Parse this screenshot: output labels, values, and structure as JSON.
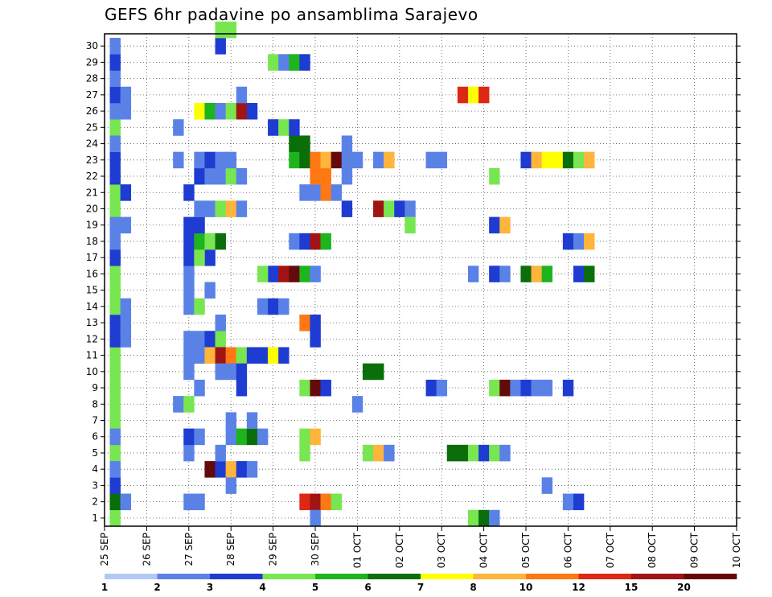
{
  "chart_data": {
    "type": "heatmap",
    "title": "GEFS 6hr padavine po ansamblima Sarajevo",
    "y_categories": [
      "1",
      "2",
      "3",
      "4",
      "5",
      "6",
      "7",
      "8",
      "9",
      "10",
      "11",
      "12",
      "13",
      "14",
      "15",
      "16",
      "17",
      "18",
      "19",
      "20",
      "21",
      "22",
      "23",
      "24",
      "25",
      "26",
      "27",
      "28",
      "29",
      "30"
    ],
    "x_ticks": [
      "25 SEP",
      "26 SEP",
      "27 SEP",
      "28 SEP",
      "29 SEP",
      "30 SEP",
      "01 OCT",
      "02 OCT",
      "03 OCT",
      "04 OCT",
      "05 OCT",
      "06 OCT",
      "07 OCT",
      "08 OCT",
      "09 OCT",
      "10 OCT"
    ],
    "time_step_hours": 6,
    "grid": "dotted",
    "colorbar": {
      "position": "bottom",
      "ticks": [
        "1",
        "2",
        "3",
        "4",
        "5",
        "6",
        "7",
        "8",
        "10",
        "12",
        "15",
        "20"
      ],
      "colors": [
        "#b4c8f5",
        "#5a82e6",
        "#1e3cd2",
        "#78e650",
        "#1eb41e",
        "#0a6e0a",
        "#ffff00",
        "#ffb43c",
        "#ff7814",
        "#dc2814",
        "#a01414",
        "#640a0a"
      ]
    },
    "cells": [
      [
        1,
        1,
        3
      ],
      [
        1,
        2,
        3
      ],
      [
        1,
        3,
        3
      ],
      [
        1,
        4,
        3
      ],
      [
        1,
        5,
        3
      ],
      [
        1,
        6,
        3
      ],
      [
        1,
        7,
        3
      ],
      [
        1,
        8,
        3
      ],
      [
        1,
        9,
        3
      ],
      [
        1,
        10,
        3
      ],
      [
        1,
        11,
        3
      ],
      [
        1,
        12,
        3
      ],
      [
        1,
        13,
        3
      ],
      [
        1,
        14,
        3
      ],
      [
        1,
        15,
        3
      ],
      [
        1,
        16,
        3
      ],
      [
        1,
        17,
        3
      ],
      [
        1,
        18,
        3
      ],
      [
        1,
        19,
        3
      ],
      [
        1,
        20,
        3
      ],
      [
        1,
        21,
        3
      ],
      [
        1,
        22,
        3
      ],
      [
        1,
        23,
        3
      ],
      [
        1,
        24,
        3
      ],
      [
        1,
        25,
        3
      ],
      [
        1,
        26,
        3
      ],
      [
        1,
        27,
        3
      ],
      [
        1,
        28,
        3
      ],
      [
        1,
        29,
        3
      ],
      [
        1,
        30,
        3
      ],
      [
        1,
        2,
        5
      ],
      [
        2,
        2,
        1
      ],
      [
        1,
        3,
        2
      ],
      [
        1,
        4,
        1
      ],
      [
        1,
        6,
        1
      ],
      [
        1,
        12,
        2
      ],
      [
        2,
        12,
        1
      ],
      [
        1,
        13,
        2
      ],
      [
        2,
        13,
        1
      ],
      [
        1,
        14,
        3
      ],
      [
        2,
        14,
        1
      ],
      [
        1,
        17,
        2
      ],
      [
        1,
        18,
        1
      ],
      [
        1,
        19,
        1
      ],
      [
        2,
        19,
        1
      ],
      [
        1,
        21,
        3
      ],
      [
        2,
        21,
        2
      ],
      [
        1,
        22,
        2
      ],
      [
        1,
        23,
        2
      ],
      [
        1,
        24,
        1
      ],
      [
        1,
        26,
        1
      ],
      [
        2,
        26,
        1
      ],
      [
        1,
        27,
        2
      ],
      [
        2,
        27,
        1
      ],
      [
        1,
        28,
        1
      ],
      [
        1,
        29,
        2
      ],
      [
        1,
        30,
        1
      ],
      [
        9,
        2,
        1
      ],
      [
        8,
        2,
        1
      ],
      [
        8,
        5,
        1
      ],
      [
        8,
        6,
        2
      ],
      [
        9,
        6,
        1
      ],
      [
        7,
        8,
        1
      ],
      [
        8,
        8,
        3
      ],
      [
        9,
        9,
        1
      ],
      [
        8,
        10,
        1
      ],
      [
        8,
        11,
        1
      ],
      [
        9,
        11,
        1
      ],
      [
        10,
        11,
        1
      ],
      [
        8,
        12,
        1
      ],
      [
        9,
        12,
        1
      ],
      [
        10,
        12,
        2
      ],
      [
        11,
        12,
        3
      ],
      [
        11,
        13,
        1
      ],
      [
        8,
        14,
        1
      ],
      [
        9,
        14,
        3
      ],
      [
        8,
        15,
        1
      ],
      [
        10,
        15,
        1
      ],
      [
        10,
        17,
        2
      ],
      [
        8,
        16,
        1
      ],
      [
        8,
        17,
        2
      ],
      [
        9,
        17,
        3
      ],
      [
        8,
        18,
        2
      ],
      [
        9,
        18,
        4
      ],
      [
        10,
        18,
        3
      ],
      [
        11,
        18,
        5
      ],
      [
        8,
        19,
        2
      ],
      [
        9,
        19,
        2
      ],
      [
        8,
        21,
        2
      ],
      [
        9,
        20,
        1
      ],
      [
        10,
        20,
        1
      ],
      [
        11,
        20,
        3
      ],
      [
        12,
        20,
        7
      ],
      [
        13,
        20,
        1
      ],
      [
        9,
        22,
        2
      ],
      [
        10,
        22,
        1
      ],
      [
        11,
        22,
        1
      ],
      [
        12,
        22,
        3
      ],
      [
        13,
        22,
        1
      ],
      [
        7,
        23,
        1
      ],
      [
        9,
        23,
        1
      ],
      [
        10,
        23,
        2
      ],
      [
        11,
        23,
        1
      ],
      [
        12,
        23,
        1
      ],
      [
        7,
        25,
        1
      ],
      [
        9,
        26,
        6
      ],
      [
        10,
        26,
        4
      ],
      [
        11,
        26,
        1
      ],
      [
        12,
        26,
        3
      ],
      [
        13,
        26,
        10
      ],
      [
        14,
        26,
        2
      ],
      [
        13,
        27,
        1
      ],
      [
        11,
        30,
        2
      ],
      [
        11,
        31,
        3
      ],
      [
        12,
        31,
        3
      ],
      [
        10,
        11,
        7
      ],
      [
        11,
        11,
        10
      ],
      [
        12,
        11,
        8
      ],
      [
        13,
        11,
        3
      ],
      [
        14,
        11,
        2
      ],
      [
        15,
        11,
        2
      ],
      [
        16,
        11,
        6
      ],
      [
        17,
        11,
        2
      ],
      [
        11,
        10,
        1
      ],
      [
        12,
        10,
        1
      ],
      [
        13,
        9,
        2
      ],
      [
        13,
        10,
        2
      ],
      [
        10,
        4,
        11
      ],
      [
        11,
        4,
        2
      ],
      [
        12,
        4,
        7
      ],
      [
        13,
        4,
        2
      ],
      [
        14,
        4,
        1
      ],
      [
        12,
        3,
        1
      ],
      [
        11,
        5,
        1
      ],
      [
        12,
        6,
        1
      ],
      [
        13,
        6,
        4
      ],
      [
        14,
        6,
        5
      ],
      [
        15,
        6,
        1
      ],
      [
        12,
        7,
        1
      ],
      [
        14,
        7,
        1
      ],
      [
        16,
        29,
        3
      ],
      [
        17,
        29,
        1
      ],
      [
        18,
        29,
        4
      ],
      [
        19,
        29,
        2
      ],
      [
        16,
        16,
        2
      ],
      [
        17,
        16,
        10
      ],
      [
        18,
        16,
        11
      ],
      [
        19,
        16,
        4
      ],
      [
        20,
        16,
        1
      ],
      [
        15,
        16,
        3
      ],
      [
        18,
        18,
        1
      ],
      [
        19,
        18,
        2
      ],
      [
        20,
        18,
        10
      ],
      [
        21,
        18,
        4
      ],
      [
        19,
        21,
        1
      ],
      [
        20,
        21,
        1
      ],
      [
        21,
        21,
        8
      ],
      [
        22,
        21,
        1
      ],
      [
        20,
        22,
        8
      ],
      [
        21,
        22,
        8
      ],
      [
        18,
        23,
        4
      ],
      [
        19,
        23,
        5
      ],
      [
        20,
        23,
        8
      ],
      [
        21,
        23,
        7
      ],
      [
        22,
        23,
        11
      ],
      [
        23,
        23,
        1
      ],
      [
        24,
        23,
        1
      ],
      [
        18,
        24,
        5
      ],
      [
        19,
        24,
        5
      ],
      [
        16,
        25,
        2
      ],
      [
        17,
        25,
        3
      ],
      [
        18,
        25,
        2
      ],
      [
        15,
        14,
        1
      ],
      [
        16,
        14,
        2
      ],
      [
        17,
        14,
        1
      ],
      [
        19,
        13,
        8
      ],
      [
        20,
        13,
        2
      ],
      [
        20,
        12,
        2
      ],
      [
        19,
        9,
        3
      ],
      [
        20,
        9,
        11
      ],
      [
        21,
        9,
        2
      ],
      [
        19,
        5,
        3
      ],
      [
        19,
        6,
        3
      ],
      [
        20,
        6,
        7
      ],
      [
        19,
        2,
        9
      ],
      [
        20,
        2,
        10
      ],
      [
        21,
        2,
        8
      ],
      [
        22,
        2,
        3
      ],
      [
        20,
        1,
        1
      ],
      [
        24,
        8,
        1
      ],
      [
        23,
        20,
        2
      ],
      [
        23,
        22,
        1
      ],
      [
        23,
        24,
        1
      ],
      [
        25,
        5,
        3
      ],
      [
        26,
        5,
        7
      ],
      [
        27,
        5,
        1
      ],
      [
        25,
        10,
        5
      ],
      [
        26,
        10,
        5
      ],
      [
        26,
        20,
        10
      ],
      [
        27,
        20,
        3
      ],
      [
        28,
        20,
        2
      ],
      [
        29,
        20,
        1
      ],
      [
        29,
        19,
        3
      ],
      [
        26,
        23,
        1
      ],
      [
        27,
        23,
        7
      ],
      [
        31,
        9,
        2
      ],
      [
        32,
        9,
        1
      ],
      [
        31,
        23,
        1
      ],
      [
        32,
        23,
        1
      ],
      [
        33,
        5,
        5
      ],
      [
        34,
        5,
        5
      ],
      [
        35,
        5,
        3
      ],
      [
        36,
        5,
        2
      ],
      [
        37,
        5,
        3
      ],
      [
        38,
        5,
        1
      ],
      [
        35,
        1,
        3
      ],
      [
        36,
        1,
        5
      ],
      [
        37,
        1,
        1
      ],
      [
        35,
        16,
        1
      ],
      [
        37,
        16,
        2
      ],
      [
        38,
        16,
        1
      ],
      [
        37,
        19,
        2
      ],
      [
        38,
        19,
        7
      ],
      [
        37,
        9,
        3
      ],
      [
        38,
        9,
        11
      ],
      [
        39,
        9,
        1
      ],
      [
        37,
        22,
        3
      ],
      [
        34,
        27,
        9
      ],
      [
        35,
        27,
        6
      ],
      [
        36,
        27,
        9
      ],
      [
        40,
        9,
        2
      ],
      [
        41,
        9,
        1
      ],
      [
        42,
        9,
        1
      ],
      [
        42,
        3,
        1
      ],
      [
        40,
        16,
        5
      ],
      [
        41,
        16,
        7
      ],
      [
        42,
        16,
        4
      ],
      [
        40,
        23,
        2
      ],
      [
        41,
        23,
        7
      ],
      [
        42,
        23,
        6
      ],
      [
        43,
        23,
        6
      ],
      [
        44,
        23,
        5
      ],
      [
        45,
        23,
        3
      ],
      [
        46,
        23,
        7
      ],
      [
        44,
        2,
        1
      ],
      [
        45,
        2,
        2
      ],
      [
        44,
        18,
        2
      ],
      [
        45,
        18,
        1
      ],
      [
        46,
        18,
        7
      ],
      [
        45,
        16,
        2
      ],
      [
        46,
        16,
        5
      ],
      [
        44,
        9,
        2
      ]
    ]
  }
}
